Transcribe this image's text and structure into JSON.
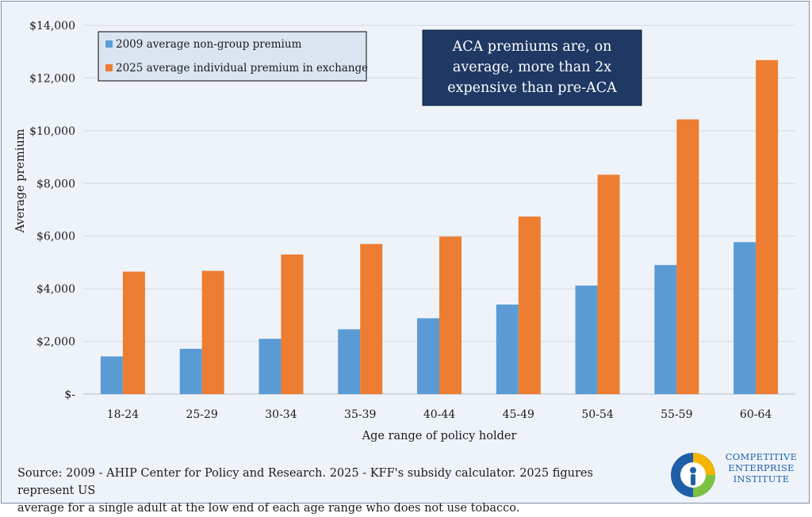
{
  "chart_data": {
    "type": "bar",
    "categories": [
      "18-24",
      "25-29",
      "30-34",
      "35-39",
      "40-44",
      "45-49",
      "50-54",
      "55-59",
      "60-64"
    ],
    "series": [
      {
        "name": "2009 average non-group premium",
        "color": "#5b9bd5",
        "values": [
          1430,
          1720,
          2100,
          2460,
          2880,
          3400,
          4120,
          4900,
          5770
        ]
      },
      {
        "name": "2025 average individual premium in exchange",
        "color": "#ed7d31",
        "values": [
          4650,
          4680,
          5300,
          5700,
          5980,
          6740,
          8330,
          10430,
          12680
        ]
      }
    ],
    "xlabel": "Age range of policy holder",
    "ylabel": "Average premium",
    "ylim": [
      0,
      14000
    ],
    "yticks": [
      0,
      2000,
      4000,
      6000,
      8000,
      10000,
      12000,
      14000
    ],
    "ytick_labels": [
      "$-",
      "$2,000",
      "$4,000",
      "$6,000",
      "$8,000",
      "$10,000",
      "$12,000",
      "$14,000"
    ],
    "grid": true,
    "legend_position": "top-left",
    "annotation": {
      "lines": [
        "ACA premiums are, on",
        "average, more than 2x",
        "expensive than pre-ACA"
      ],
      "background": "#1f3864",
      "text_color": "#ffffff"
    }
  },
  "source": {
    "line1": "Source: 2009 - AHIP Center for Policy and Research. 2025 - KFF's subsidy calculator. 2025 figures represent US",
    "line2": "average for a single adult at the low end of each age range who does not use tobacco."
  },
  "logo": {
    "lines": [
      "COMPETITIVE",
      "ENTERPRISE",
      "INSTITUTE"
    ],
    "color": "#1f5fa8"
  }
}
